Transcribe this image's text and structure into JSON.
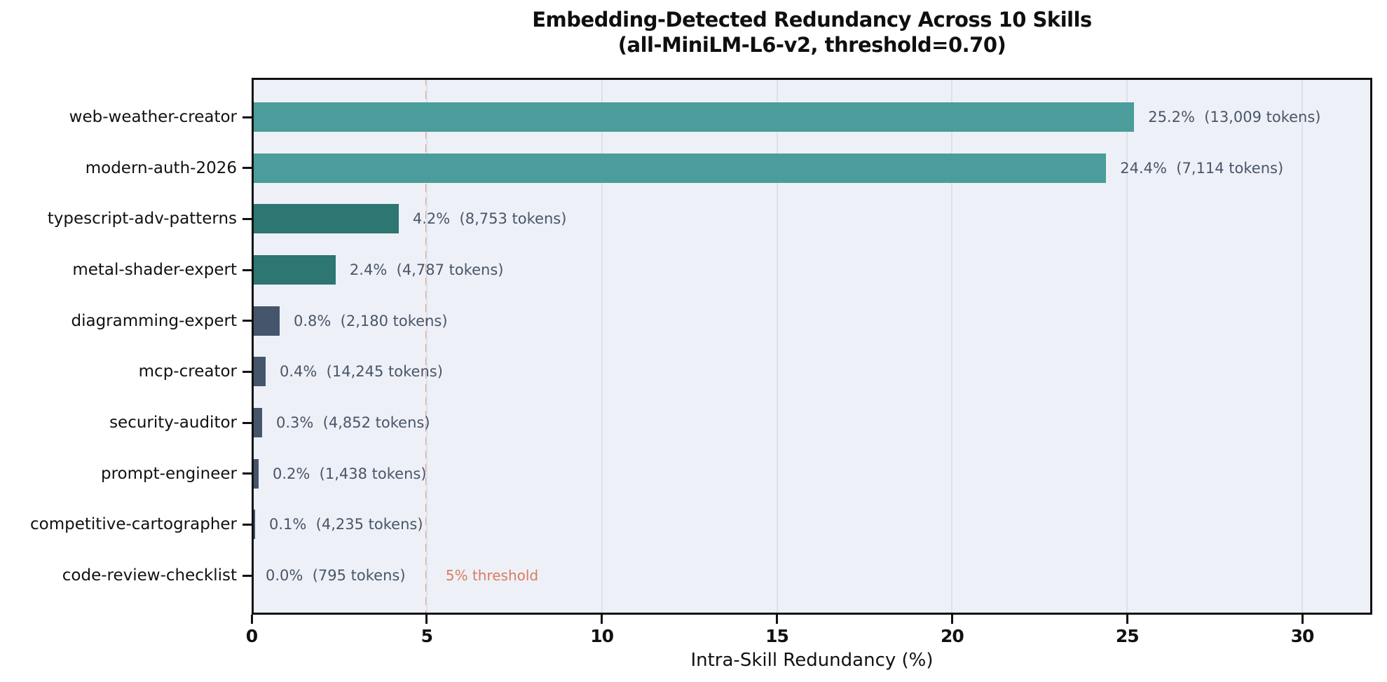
{
  "chart_data": {
    "type": "bar",
    "orientation": "horizontal",
    "title": "Embedding-Detected Redundancy Across 10 Skills (all-MiniLM-L6-v2, threshold=0.70)",
    "title_lines": [
      "Embedding-Detected Redundancy Across 10 Skills",
      "(all-MiniLM-L6-v2, threshold=0.70)"
    ],
    "xlabel": "Intra-Skill Redundancy (%)",
    "xlim": [
      0,
      32
    ],
    "xticks": [
      0,
      5,
      10,
      15,
      20,
      25,
      30
    ],
    "grid": "vertical-gridlines-on",
    "legend": "none",
    "categories": [
      "web-weather-creator",
      "modern-auth-2026",
      "typescript-adv-patterns",
      "metal-shader-expert",
      "diagramming-expert",
      "mcp-creator",
      "security-auditor",
      "prompt-engineer",
      "competitive-cartographer",
      "code-review-checklist"
    ],
    "values": [
      25.2,
      24.4,
      4.2,
      2.4,
      0.8,
      0.4,
      0.3,
      0.2,
      0.1,
      0.0
    ],
    "tokens": [
      13009,
      7114,
      8753,
      4787,
      2180,
      14245,
      4852,
      1438,
      4235,
      795
    ],
    "annotations": [
      "25.2%  (13,009 tokens)",
      "24.4%  (7,114 tokens)",
      "4.2%  (8,753 tokens)",
      "2.4%  (4,787 tokens)",
      "0.8%  (2,180 tokens)",
      "0.4%  (14,245 tokens)",
      "0.3%  (4,852 tokens)",
      "0.2%  (1,438 tokens)",
      "0.1%  (4,235 tokens)",
      "0.0%  (795 tokens)"
    ],
    "bar_colors": [
      "#4a9d9a",
      "#4a9d9a",
      "#2d7672",
      "#2d7672",
      "#45556b",
      "#45556b",
      "#45556b",
      "#45556b",
      "#45556b",
      "#45556b"
    ],
    "threshold": {
      "x": 5,
      "label": "5% threshold",
      "line_color": "#eb9b7e",
      "text_color": "#dd7a5e"
    },
    "style": {
      "plot_bg": "#edf1f7",
      "figure_bg": "#ffffff",
      "gridline_color": "#dce1ea",
      "annotation_color": "#4a5568",
      "axis_color": "#111111"
    }
  }
}
